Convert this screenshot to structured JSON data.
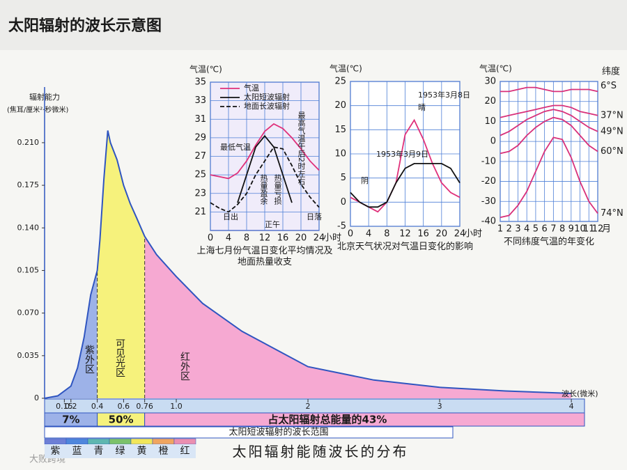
{
  "page": {
    "title": "太阳辐射的波长示意图",
    "logo": "大败跨境"
  },
  "chart_data": [
    {
      "type": "area",
      "ylabel": [
        "辐射能力",
        "(焦耳/厘米²·秒微米)"
      ],
      "xlabel": "波长(微米)",
      "x": [
        0,
        0.1,
        0.2,
        0.25,
        0.3,
        0.35,
        0.4,
        0.42,
        0.45,
        0.48,
        0.5,
        0.55,
        0.6,
        0.65,
        0.7,
        0.76,
        0.85,
        1.0,
        1.2,
        1.5,
        2.0,
        2.5,
        3.0,
        3.5,
        4.0
      ],
      "values": [
        0,
        0.002,
        0.01,
        0.025,
        0.05,
        0.085,
        0.105,
        0.13,
        0.18,
        0.22,
        0.21,
        0.196,
        0.175,
        0.16,
        0.148,
        0.133,
        0.118,
        0.1,
        0.078,
        0.055,
        0.026,
        0.015,
        0.009,
        0.006,
        0.004
      ],
      "color": "#2f55c0",
      "xlim": [
        0,
        4.1
      ],
      "ylim": [
        0,
        0.25
      ],
      "xticks": [
        0.15,
        0.2,
        0.4,
        0.6,
        0.76,
        {
          "value": 1,
          "label": "1.0"
        },
        2,
        3,
        4
      ],
      "yticks": [
        0,
        0.035,
        {
          "value": 0.07,
          "label": "0.070"
        },
        0.105,
        {
          "value": 0.14,
          "label": "0.140"
        },
        0.175,
        {
          "value": 0.21,
          "label": "0.210"
        }
      ],
      "regions": [
        {
          "name": "紫外区",
          "from": 0,
          "to": 0.4,
          "color": "#9db2e8",
          "share": "7%"
        },
        {
          "name": "可见光区",
          "from": 0.4,
          "to": 0.76,
          "color": "#f6f27c",
          "share": "50%"
        },
        {
          "name": "红外区",
          "from": 0.76,
          "to": 4.1,
          "color": "#f6a9d2",
          "share": "占太阳辐射总能量的43%"
        }
      ],
      "short_wave": "太阳短波辐射的波长范围",
      "spectrum": [
        {
          "name": "紫",
          "color": "#6d7fd6"
        },
        {
          "name": "蓝",
          "color": "#4f86dc"
        },
        {
          "name": "青",
          "color": "#5fb7b0"
        },
        {
          "name": "绿",
          "color": "#7cc26a"
        },
        {
          "name": "黄",
          "color": "#f2e65a"
        },
        {
          "name": "橙",
          "color": "#f0a560"
        },
        {
          "name": "红",
          "color": "#ea8fb0"
        }
      ],
      "caption": "太阳辐射能随波长的分布"
    },
    {
      "type": "line",
      "ylabel": "气温(℃)",
      "x_unit": "小时",
      "caption": "上海七月份气温日变化平均情况及地面热量收支",
      "xlim": [
        0,
        24
      ],
      "ylim": [
        19,
        35
      ],
      "xticks": [
        0,
        4,
        8,
        12,
        16,
        20,
        24
      ],
      "yticks": [
        21,
        23,
        25,
        27,
        29,
        31,
        33,
        35
      ],
      "grid": true,
      "legend": true,
      "x": [
        0,
        2,
        4,
        6,
        8,
        10,
        12,
        14,
        16,
        18,
        20,
        22,
        24
      ],
      "series": [
        {
          "name": "气温",
          "color": "#e0307a",
          "dash": false,
          "values": [
            25,
            24.8,
            24.6,
            25.2,
            26.5,
            28.2,
            29.7,
            30.5,
            30,
            29,
            27.8,
            26.5,
            25.5
          ]
        },
        {
          "name": "太阳短波辐射",
          "color": "#111111",
          "dash": false,
          "values": [
            null,
            null,
            null,
            22,
            25,
            28,
            29.2,
            28,
            25,
            22,
            null,
            null,
            null
          ]
        },
        {
          "name": "地面长波辐射",
          "color": "#111111",
          "dash": true,
          "values": [
            22,
            21.4,
            21,
            21.8,
            23,
            25,
            26.5,
            28,
            27.8,
            26,
            24,
            22.6,
            21.5
          ]
        }
      ],
      "annotations": [
        "最低气温",
        "最高气温午后2时左右",
        "热量盈余",
        "热量亏损",
        "日出",
        "正午",
        "日落"
      ]
    },
    {
      "type": "line",
      "ylabel": "气温(℃)",
      "x_unit": "小时",
      "caption": "北京天气状况对气温日变化的影响",
      "xlim": [
        0,
        24
      ],
      "ylim": [
        -5,
        25
      ],
      "xticks": [
        0,
        4,
        8,
        12,
        16,
        20,
        24
      ],
      "yticks": [
        -5,
        0,
        5,
        10,
        15,
        20,
        25
      ],
      "grid": true,
      "legend": false,
      "x": [
        0,
        2,
        4,
        6,
        8,
        10,
        12,
        14,
        16,
        18,
        20,
        22,
        24
      ],
      "series": [
        {
          "name": "1953年3月8日",
          "color": "#e0307a",
          "dash": false,
          "values": [
            1,
            0,
            -1,
            -2,
            0,
            4,
            14,
            17,
            13,
            8,
            4,
            2,
            1
          ]
        },
        {
          "name": "1953年3月9日",
          "color": "#111111",
          "dash": false,
          "values": [
            2,
            0,
            -1,
            -1,
            0,
            4,
            7,
            8,
            8,
            8,
            8,
            7,
            4
          ]
        }
      ],
      "annotations": [
        "1953年3月8日",
        "晴",
        "1953年3月9日",
        "阴"
      ]
    },
    {
      "type": "line",
      "ylabel": "气温(℃)",
      "x_unit": "月",
      "caption": "不同纬度气温的年变化",
      "series_title": "纬度",
      "xlim": [
        1,
        12
      ],
      "ylim": [
        -40,
        30
      ],
      "xticks": [
        1,
        2,
        3,
        4,
        5,
        6,
        7,
        8,
        9,
        10,
        11,
        12
      ],
      "yticks": [
        -40,
        -30,
        -20,
        -10,
        0,
        10,
        20,
        30
      ],
      "grid": true,
      "legend": false,
      "x": [
        1,
        2,
        3,
        4,
        5,
        6,
        7,
        8,
        9,
        10,
        11,
        12
      ],
      "series": [
        {
          "name": "6°S",
          "color": "#d8307a",
          "dash": false,
          "values": [
            25,
            25,
            26,
            27,
            27,
            26,
            25,
            25,
            26,
            26,
            26,
            25
          ]
        },
        {
          "name": "37°N",
          "color": "#d8307a",
          "dash": false,
          "values": [
            12,
            13,
            14,
            15,
            16,
            17,
            18,
            18,
            17,
            15,
            14,
            13
          ]
        },
        {
          "name": "49°N",
          "color": "#d8307a",
          "dash": false,
          "values": [
            3,
            5,
            8,
            11,
            13,
            15,
            16,
            15,
            13,
            10,
            7,
            5
          ]
        },
        {
          "name": "60°N",
          "color": "#d8307a",
          "dash": false,
          "values": [
            -6,
            -5,
            -2,
            3,
            7,
            10,
            12,
            11,
            8,
            3,
            -2,
            -5
          ]
        },
        {
          "name": "74°N",
          "color": "#d8307a",
          "dash": false,
          "values": [
            -38,
            -37,
            -32,
            -25,
            -15,
            -5,
            2,
            1,
            -8,
            -20,
            -30,
            -36
          ]
        }
      ],
      "annotations": []
    }
  ]
}
